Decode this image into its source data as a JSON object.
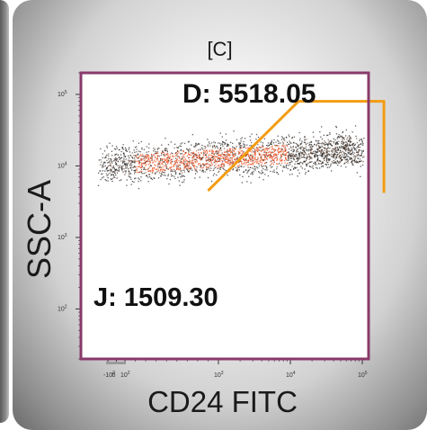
{
  "panel": {
    "title": "[C]"
  },
  "chart_data": {
    "type": "scatter",
    "xlabel": "CD24 FITC",
    "ylabel": "SSC-A",
    "x_scale": "biexponential",
    "y_scale": "log",
    "xlim": [
      -200,
      200000
    ],
    "ylim": [
      20,
      200000
    ],
    "x_ticks": [
      "-10^2",
      "0",
      "10^2",
      "10^3",
      "10^4",
      "10^5"
    ],
    "y_ticks": [
      "10^2",
      "10^3",
      "10^4",
      "10^5"
    ],
    "gates": [
      {
        "name": "D",
        "value": "5518.05",
        "label": "D: 5518.05",
        "shape": "polygon",
        "color": "#f39c12",
        "vertices": [
          [
            900,
            4500
          ],
          [
            13000,
            80000
          ],
          [
            200000,
            80000
          ],
          [
            200000,
            4200
          ]
        ]
      },
      {
        "name": "J",
        "value": "1509.30",
        "label": "J: 1509.30"
      }
    ],
    "population": {
      "x_range": [
        -200,
        100000
      ],
      "y_center": 13000,
      "y_spread_decades": 0.22,
      "density_colors": [
        "#1a1a1a",
        "#5a3a2a",
        "#e8522a",
        "#ff6a3a"
      ]
    },
    "frame_color": "#8a3a6a"
  }
}
